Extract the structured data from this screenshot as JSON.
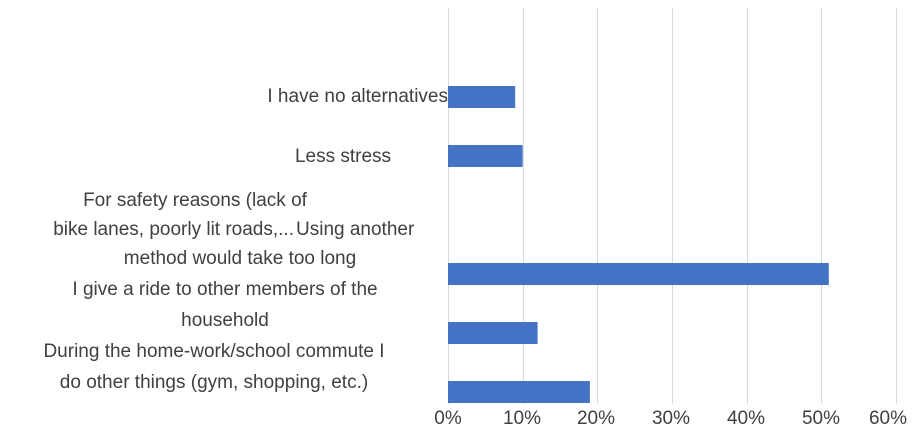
{
  "chart_data": {
    "type": "bar",
    "orientation": "horizontal",
    "categories": [
      "I have no alternatives",
      "Less stress",
      "For safety reasons (lack of bike lanes, poorly lit roads,...",
      "Using another method would take too long",
      "I give a ride to other members of the household",
      "During the home-work/school commute I do other things (gym, shopping, etc.)"
    ],
    "values": [
      0.09,
      0.1,
      0.0,
      0.51,
      0.12,
      0.19
    ],
    "xlim": [
      0,
      0.6
    ],
    "xticks": [
      "0%",
      "10%",
      "20%",
      "30%",
      "40%",
      "50%",
      "60%"
    ],
    "bar_color": "#4472C4",
    "grid": true
  },
  "labels": {
    "cat0_line1": "I have no alternatives",
    "cat1_line1": "Less stress",
    "cat2_line1": "For safety reasons (lack of",
    "cat2_line2": "bike lanes, poorly lit roads,...",
    "cat3_line1": "Using another",
    "cat3_line2": "method would take too long",
    "cat4_line1": "I give a ride to other members of the",
    "cat4_line2": "household",
    "cat5_line1": "During the home-work/school commute I",
    "cat5_line2": "do other things (gym, shopping, etc.)"
  }
}
